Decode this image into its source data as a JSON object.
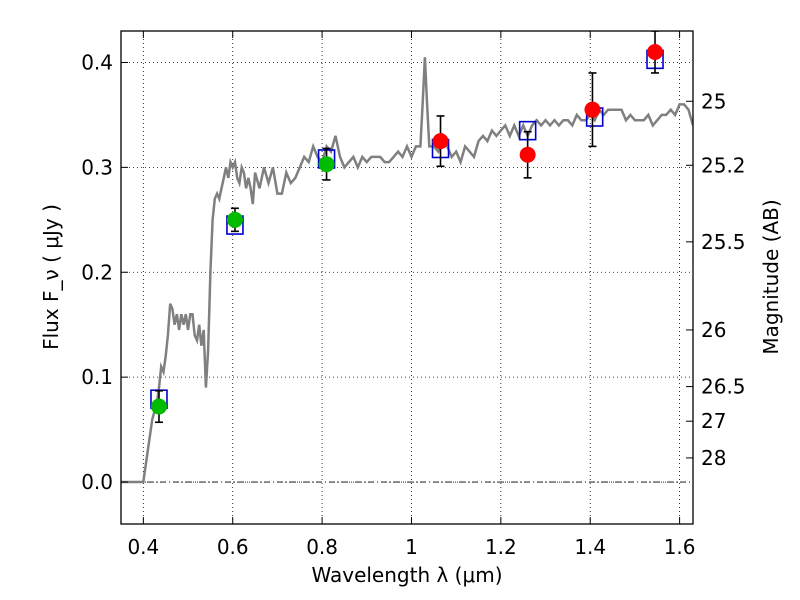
{
  "chart_data": {
    "type": "scatter",
    "xlabel": "Wavelength  λ (μm)",
    "ylabel": "Flux  F_ν  ( μJy )",
    "ylabel_right": "Magnitude (AB)",
    "xlim": [
      0.35,
      1.63
    ],
    "ylim": [
      -0.04,
      0.43
    ],
    "grid": true,
    "x_ticks": [
      0.4,
      0.6,
      0.8,
      1.0,
      1.2,
      1.4,
      1.6
    ],
    "x_tick_labels": [
      "0.4",
      "0.6",
      "0.8",
      "1",
      "1.2",
      "1.4",
      "1.6"
    ],
    "y_ticks": [
      0.0,
      0.1,
      0.2,
      0.3,
      0.4
    ],
    "y_tick_labels": [
      "0.0",
      "0.1",
      "0.2",
      "0.3",
      "0.4"
    ],
    "right_ticks": [
      {
        "label": "25",
        "flux": 0.363
      },
      {
        "label": "25.2",
        "flux": 0.302
      },
      {
        "label": "25.5",
        "flux": 0.229
      },
      {
        "label": "26",
        "flux": 0.145
      },
      {
        "label": "26.5",
        "flux": 0.091
      },
      {
        "label": "27",
        "flux": 0.058
      },
      {
        "label": "28",
        "flux": 0.023
      }
    ],
    "colors": {
      "spectrum": "#808080",
      "model_box": "#0000cc",
      "green_points": "#00bb00",
      "red_points": "#ff0000",
      "errorbar": "#000000"
    },
    "spectrum": [
      [
        0.35,
        0.0
      ],
      [
        0.39,
        0.0
      ],
      [
        0.4,
        0.0
      ],
      [
        0.41,
        0.03
      ],
      [
        0.42,
        0.06
      ],
      [
        0.43,
        0.075
      ],
      [
        0.435,
        0.09
      ],
      [
        0.44,
        0.11
      ],
      [
        0.445,
        0.105
      ],
      [
        0.45,
        0.12
      ],
      [
        0.455,
        0.14
      ],
      [
        0.46,
        0.17
      ],
      [
        0.465,
        0.165
      ],
      [
        0.47,
        0.15
      ],
      [
        0.475,
        0.16
      ],
      [
        0.48,
        0.145
      ],
      [
        0.485,
        0.16
      ],
      [
        0.49,
        0.15
      ],
      [
        0.495,
        0.16
      ],
      [
        0.5,
        0.145
      ],
      [
        0.505,
        0.16
      ],
      [
        0.51,
        0.16
      ],
      [
        0.515,
        0.14
      ],
      [
        0.52,
        0.135
      ],
      [
        0.525,
        0.15
      ],
      [
        0.53,
        0.13
      ],
      [
        0.535,
        0.145
      ],
      [
        0.54,
        0.09
      ],
      [
        0.545,
        0.125
      ],
      [
        0.55,
        0.2
      ],
      [
        0.555,
        0.25
      ],
      [
        0.56,
        0.27
      ],
      [
        0.565,
        0.275
      ],
      [
        0.57,
        0.27
      ],
      [
        0.575,
        0.28
      ],
      [
        0.58,
        0.29
      ],
      [
        0.585,
        0.3
      ],
      [
        0.59,
        0.29
      ],
      [
        0.595,
        0.305
      ],
      [
        0.6,
        0.3
      ],
      [
        0.605,
        0.305
      ],
      [
        0.61,
        0.29
      ],
      [
        0.615,
        0.285
      ],
      [
        0.62,
        0.3
      ],
      [
        0.625,
        0.295
      ],
      [
        0.63,
        0.28
      ],
      [
        0.635,
        0.29
      ],
      [
        0.64,
        0.28
      ],
      [
        0.645,
        0.265
      ],
      [
        0.65,
        0.295
      ],
      [
        0.66,
        0.28
      ],
      [
        0.67,
        0.3
      ],
      [
        0.68,
        0.285
      ],
      [
        0.69,
        0.3
      ],
      [
        0.7,
        0.275
      ],
      [
        0.71,
        0.275
      ],
      [
        0.72,
        0.295
      ],
      [
        0.73,
        0.285
      ],
      [
        0.74,
        0.29
      ],
      [
        0.75,
        0.3
      ],
      [
        0.76,
        0.31
      ],
      [
        0.77,
        0.305
      ],
      [
        0.78,
        0.32
      ],
      [
        0.79,
        0.31
      ],
      [
        0.8,
        0.305
      ],
      [
        0.81,
        0.32
      ],
      [
        0.82,
        0.315
      ],
      [
        0.83,
        0.33
      ],
      [
        0.84,
        0.31
      ],
      [
        0.85,
        0.3
      ],
      [
        0.86,
        0.305
      ],
      [
        0.87,
        0.31
      ],
      [
        0.88,
        0.3
      ],
      [
        0.89,
        0.31
      ],
      [
        0.9,
        0.305
      ],
      [
        0.91,
        0.31
      ],
      [
        0.92,
        0.31
      ],
      [
        0.93,
        0.31
      ],
      [
        0.94,
        0.305
      ],
      [
        0.95,
        0.305
      ],
      [
        0.96,
        0.31
      ],
      [
        0.97,
        0.315
      ],
      [
        0.98,
        0.31
      ],
      [
        0.99,
        0.32
      ],
      [
        1.0,
        0.31
      ],
      [
        1.01,
        0.32
      ],
      [
        1.02,
        0.32
      ],
      [
        1.025,
        0.36
      ],
      [
        1.03,
        0.405
      ],
      [
        1.035,
        0.36
      ],
      [
        1.04,
        0.32
      ],
      [
        1.05,
        0.32
      ],
      [
        1.06,
        0.315
      ],
      [
        1.07,
        0.33
      ],
      [
        1.08,
        0.32
      ],
      [
        1.09,
        0.31
      ],
      [
        1.1,
        0.315
      ],
      [
        1.11,
        0.305
      ],
      [
        1.12,
        0.32
      ],
      [
        1.13,
        0.315
      ],
      [
        1.14,
        0.31
      ],
      [
        1.15,
        0.325
      ],
      [
        1.16,
        0.33
      ],
      [
        1.17,
        0.325
      ],
      [
        1.18,
        0.335
      ],
      [
        1.19,
        0.33
      ],
      [
        1.2,
        0.335
      ],
      [
        1.21,
        0.34
      ],
      [
        1.22,
        0.33
      ],
      [
        1.23,
        0.34
      ],
      [
        1.24,
        0.33
      ],
      [
        1.25,
        0.34
      ],
      [
        1.26,
        0.33
      ],
      [
        1.27,
        0.34
      ],
      [
        1.28,
        0.345
      ],
      [
        1.29,
        0.34
      ],
      [
        1.3,
        0.345
      ],
      [
        1.31,
        0.34
      ],
      [
        1.32,
        0.345
      ],
      [
        1.33,
        0.34
      ],
      [
        1.34,
        0.345
      ],
      [
        1.35,
        0.345
      ],
      [
        1.36,
        0.34
      ],
      [
        1.37,
        0.35
      ],
      [
        1.38,
        0.345
      ],
      [
        1.39,
        0.345
      ],
      [
        1.4,
        0.35
      ],
      [
        1.41,
        0.345
      ],
      [
        1.42,
        0.355
      ],
      [
        1.43,
        0.35
      ],
      [
        1.44,
        0.355
      ],
      [
        1.45,
        0.355
      ],
      [
        1.46,
        0.355
      ],
      [
        1.47,
        0.355
      ],
      [
        1.48,
        0.345
      ],
      [
        1.49,
        0.35
      ],
      [
        1.5,
        0.345
      ],
      [
        1.51,
        0.345
      ],
      [
        1.52,
        0.345
      ],
      [
        1.53,
        0.35
      ],
      [
        1.54,
        0.34
      ],
      [
        1.55,
        0.345
      ],
      [
        1.56,
        0.35
      ],
      [
        1.57,
        0.35
      ],
      [
        1.58,
        0.355
      ],
      [
        1.59,
        0.35
      ],
      [
        1.6,
        0.36
      ],
      [
        1.61,
        0.36
      ],
      [
        1.62,
        0.355
      ],
      [
        1.63,
        0.34
      ]
    ],
    "model_boxes": [
      {
        "x": 0.435,
        "y": 0.079
      },
      {
        "x": 0.605,
        "y": 0.245
      },
      {
        "x": 0.81,
        "y": 0.308
      },
      {
        "x": 1.065,
        "y": 0.318
      },
      {
        "x": 1.26,
        "y": 0.335
      },
      {
        "x": 1.41,
        "y": 0.348
      },
      {
        "x": 1.545,
        "y": 0.403
      }
    ],
    "series": [
      {
        "points": [
          {
            "x": 0.435,
            "y": 0.072,
            "err": 0.015
          },
          {
            "x": 0.605,
            "y": 0.25,
            "err": 0.011
          },
          {
            "x": 0.81,
            "y": 0.303,
            "err": 0.015
          }
        ]
      },
      {
        "points": [
          {
            "x": 1.065,
            "y": 0.325,
            "err": 0.024
          },
          {
            "x": 1.26,
            "y": 0.312,
            "err": 0.022
          },
          {
            "x": 1.405,
            "y": 0.355,
            "err": 0.035
          },
          {
            "x": 1.545,
            "y": 0.41,
            "err": 0.02
          }
        ]
      }
    ]
  }
}
